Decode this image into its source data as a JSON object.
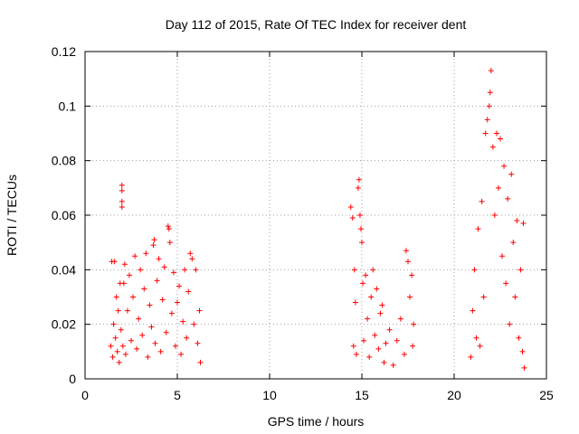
{
  "chart_data": {
    "type": "scatter",
    "title": "Day 112 of 2015, Rate Of TEC Index for receiver dent",
    "xlabel": "GPS time / hours",
    "ylabel": "ROTI / TECUs",
    "xlim": [
      0,
      25
    ],
    "ylim": [
      0,
      0.12
    ],
    "x_ticks": [
      0,
      5,
      10,
      15,
      20,
      25
    ],
    "y_ticks": [
      0,
      0.02,
      0.04,
      0.06,
      0.08,
      0.1,
      0.12
    ],
    "x_tick_labels": [
      "0",
      "5",
      "10",
      "15",
      "20",
      "25"
    ],
    "y_tick_labels": [
      "0",
      "0.02",
      "0.04",
      "0.06",
      "0.08",
      "0.1",
      "0.12"
    ],
    "grid": true,
    "marker": "+",
    "marker_color": "#ff0000",
    "series": [
      {
        "points": [
          [
            1.4,
            0.012
          ],
          [
            1.45,
            0.043
          ],
          [
            1.5,
            0.008
          ],
          [
            1.55,
            0.02
          ],
          [
            1.6,
            0.043
          ],
          [
            1.65,
            0.015
          ],
          [
            1.7,
            0.03
          ],
          [
            1.75,
            0.01
          ],
          [
            1.8,
            0.025
          ],
          [
            1.85,
            0.006
          ],
          [
            1.9,
            0.035
          ],
          [
            1.95,
            0.018
          ],
          [
            2.0,
            0.071
          ],
          [
            2.0,
            0.069
          ],
          [
            2.0,
            0.065
          ],
          [
            2.0,
            0.063
          ],
          [
            2.05,
            0.012
          ],
          [
            2.1,
            0.035
          ],
          [
            2.15,
            0.042
          ],
          [
            2.2,
            0.009
          ],
          [
            2.3,
            0.025
          ],
          [
            2.4,
            0.038
          ],
          [
            2.5,
            0.014
          ],
          [
            2.6,
            0.03
          ],
          [
            2.7,
            0.045
          ],
          [
            2.8,
            0.011
          ],
          [
            2.9,
            0.022
          ],
          [
            3.0,
            0.04
          ],
          [
            3.1,
            0.016
          ],
          [
            3.2,
            0.033
          ],
          [
            3.3,
            0.046
          ],
          [
            3.4,
            0.008
          ],
          [
            3.5,
            0.027
          ],
          [
            3.6,
            0.019
          ],
          [
            3.7,
            0.049
          ],
          [
            3.75,
            0.051
          ],
          [
            3.8,
            0.013
          ],
          [
            3.9,
            0.036
          ],
          [
            4.0,
            0.044
          ],
          [
            4.1,
            0.01
          ],
          [
            4.2,
            0.029
          ],
          [
            4.3,
            0.041
          ],
          [
            4.4,
            0.017
          ],
          [
            4.5,
            0.056
          ],
          [
            4.55,
            0.055
          ],
          [
            4.6,
            0.05
          ],
          [
            4.7,
            0.024
          ],
          [
            4.8,
            0.039
          ],
          [
            4.9,
            0.012
          ],
          [
            5.0,
            0.028
          ],
          [
            5.1,
            0.034
          ],
          [
            5.2,
            0.009
          ],
          [
            5.3,
            0.021
          ],
          [
            5.4,
            0.04
          ],
          [
            5.5,
            0.015
          ],
          [
            5.6,
            0.032
          ],
          [
            5.7,
            0.046
          ],
          [
            5.8,
            0.044
          ],
          [
            5.9,
            0.02
          ],
          [
            6.0,
            0.04
          ],
          [
            6.1,
            0.013
          ],
          [
            6.2,
            0.025
          ],
          [
            6.25,
            0.006
          ],
          [
            14.4,
            0.063
          ],
          [
            14.5,
            0.059
          ],
          [
            14.55,
            0.012
          ],
          [
            14.6,
            0.04
          ],
          [
            14.65,
            0.028
          ],
          [
            14.7,
            0.009
          ],
          [
            14.8,
            0.07
          ],
          [
            14.85,
            0.073
          ],
          [
            14.9,
            0.06
          ],
          [
            14.95,
            0.055
          ],
          [
            15.0,
            0.05
          ],
          [
            15.05,
            0.035
          ],
          [
            15.1,
            0.014
          ],
          [
            15.2,
            0.038
          ],
          [
            15.3,
            0.022
          ],
          [
            15.4,
            0.008
          ],
          [
            15.5,
            0.03
          ],
          [
            15.6,
            0.04
          ],
          [
            15.7,
            0.016
          ],
          [
            15.8,
            0.033
          ],
          [
            15.9,
            0.011
          ],
          [
            16.0,
            0.024
          ],
          [
            16.1,
            0.027
          ],
          [
            16.2,
            0.006
          ],
          [
            16.3,
            0.013
          ],
          [
            16.5,
            0.018
          ],
          [
            16.7,
            0.005
          ],
          [
            16.9,
            0.014
          ],
          [
            17.1,
            0.022
          ],
          [
            17.3,
            0.009
          ],
          [
            17.4,
            0.047
          ],
          [
            17.5,
            0.043
          ],
          [
            17.6,
            0.03
          ],
          [
            17.7,
            0.038
          ],
          [
            17.75,
            0.012
          ],
          [
            17.8,
            0.02
          ],
          [
            20.9,
            0.008
          ],
          [
            21.0,
            0.025
          ],
          [
            21.1,
            0.04
          ],
          [
            21.2,
            0.015
          ],
          [
            21.3,
            0.055
          ],
          [
            21.4,
            0.012
          ],
          [
            21.5,
            0.065
          ],
          [
            21.6,
            0.03
          ],
          [
            21.7,
            0.09
          ],
          [
            21.8,
            0.095
          ],
          [
            21.9,
            0.1
          ],
          [
            21.95,
            0.105
          ],
          [
            22.0,
            0.113
          ],
          [
            22.1,
            0.085
          ],
          [
            22.2,
            0.06
          ],
          [
            22.3,
            0.09
          ],
          [
            22.4,
            0.07
          ],
          [
            22.5,
            0.088
          ],
          [
            22.6,
            0.045
          ],
          [
            22.7,
            0.078
          ],
          [
            22.8,
            0.035
          ],
          [
            22.9,
            0.066
          ],
          [
            23.0,
            0.02
          ],
          [
            23.1,
            0.075
          ],
          [
            23.2,
            0.05
          ],
          [
            23.3,
            0.03
          ],
          [
            23.4,
            0.058
          ],
          [
            23.5,
            0.015
          ],
          [
            23.6,
            0.04
          ],
          [
            23.7,
            0.01
          ],
          [
            23.75,
            0.057
          ],
          [
            23.8,
            0.004
          ]
        ]
      }
    ]
  }
}
